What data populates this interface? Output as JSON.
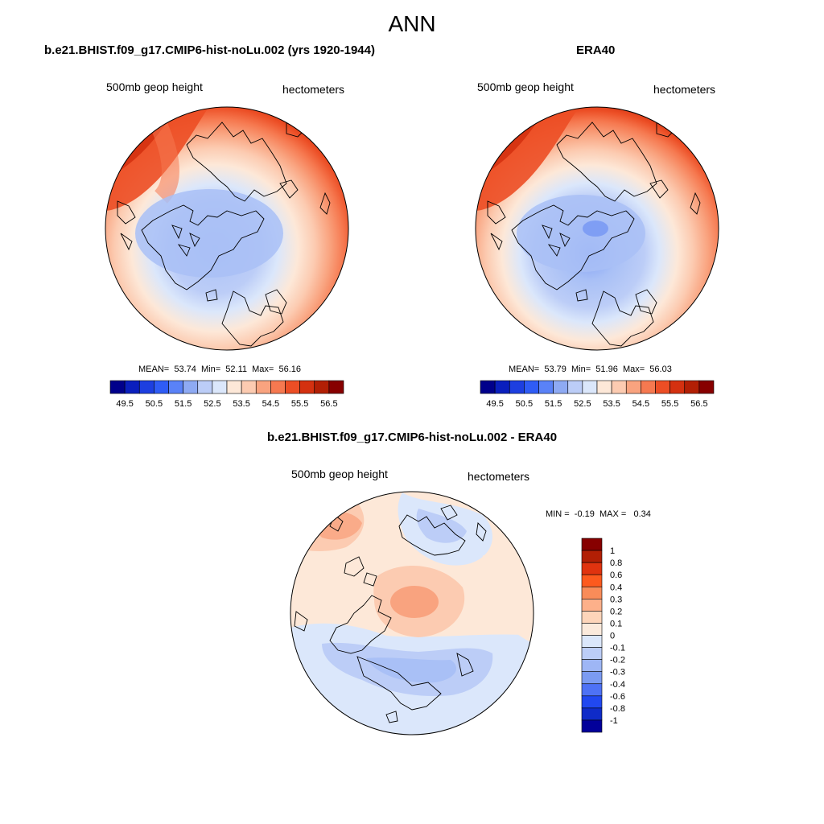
{
  "title": "ANN",
  "colors": {
    "ocean": "#ffffff",
    "coast": "#000000",
    "border": "#000000"
  },
  "panels": [
    {
      "title": "b.e21.BHIST.f09_g17.CMIP6-hist-noLu.002 (yrs 1920-1944)",
      "variable": "500mb geop height",
      "units": "hectometers",
      "stats": {
        "mean_label": "MEAN=",
        "mean": "53.74",
        "min_label": "Min=",
        "min": "52.11",
        "max_label": "Max=",
        "max": "56.16"
      }
    },
    {
      "title": "ERA40",
      "variable": "500mb geop height",
      "units": "hectometers",
      "stats": {
        "mean_label": "MEAN=",
        "mean": "53.79",
        "min_label": "Min=",
        "min": "51.96",
        "max_label": "Max=",
        "max": "56.03"
      }
    },
    {
      "title": "b.e21.BHIST.f09_g17.CMIP6-hist-noLu.002 - ERA40",
      "variable": "500mb geop height",
      "units": "hectometers",
      "stats": {
        "min_label": "MIN =",
        "min": "-0.19",
        "max_label": "MAX =",
        "max": "0.34"
      }
    }
  ],
  "colorbar_abs": {
    "colors": [
      "#00008b",
      "#0a1fbd",
      "#1d3fe0",
      "#2f5cf5",
      "#5a82f7",
      "#8eaaf3",
      "#bccdf7",
      "#dbe7fb",
      "#fde8d8",
      "#fccbb1",
      "#f9a37f",
      "#f67950",
      "#ec4e25",
      "#d43110",
      "#b21f05",
      "#870000"
    ],
    "ticks": [
      "49.5",
      "50.5",
      "51.5",
      "52.5",
      "53.5",
      "54.5",
      "55.5",
      "56.5"
    ]
  },
  "colorbar_diff": {
    "colors": [
      "#870000",
      "#b21f05",
      "#e0330f",
      "#fd5a1e",
      "#f98c59",
      "#fdb08a",
      "#fdd5ba",
      "#fbeadc",
      "#dbe7fb",
      "#bccdf7",
      "#9eb6f5",
      "#7b9bf2",
      "#4e72f5",
      "#2148f0",
      "#0f2bc8",
      "#02009a"
    ],
    "labels": [
      "1",
      "0.8",
      "0.6",
      "0.4",
      "0.3",
      "0.2",
      "0.1",
      "0",
      "-0.1",
      "-0.2",
      "-0.3",
      "-0.4",
      "-0.6",
      "-0.8",
      "-1"
    ]
  },
  "chart_data": [
    {
      "type": "map",
      "projection": "north-polar stereographic",
      "field": "500mb geop height",
      "units": "hectometers",
      "mean": 53.74,
      "min": 52.11,
      "max": 56.16,
      "contour_levels": [
        49.5,
        50,
        50.5,
        51,
        51.5,
        52,
        52.5,
        53,
        53.5,
        54,
        54.5,
        55,
        55.5,
        56,
        56.5
      ],
      "pattern": [
        {
          "region": "Arctic / Canadian archipelago",
          "value_range": [
            52.5,
            53.0
          ]
        },
        {
          "region": "Pacific and Atlantic subtropics (rim)",
          "value_range": [
            55.5,
            56.16
          ]
        }
      ]
    },
    {
      "type": "map",
      "projection": "north-polar stereographic",
      "field": "500mb geop height",
      "units": "hectometers",
      "mean": 53.79,
      "min": 51.96,
      "max": 56.03,
      "contour_levels": [
        49.5,
        50,
        50.5,
        51,
        51.5,
        52,
        52.5,
        53,
        53.5,
        54,
        54.5,
        55,
        55.5,
        56,
        56.5
      ],
      "pattern": [
        {
          "region": "low center over Canadian Arctic",
          "value_range": [
            51.96,
            52.5
          ]
        },
        {
          "region": "Pacific and Atlantic subtropics (rim)",
          "value_range": [
            55.5,
            56.03
          ]
        }
      ]
    },
    {
      "type": "map",
      "projection": "north-polar stereographic",
      "field": "difference 500mb geop height",
      "units": "hectometers",
      "min": -0.19,
      "max": 0.34,
      "contour_levels": [
        -1,
        -0.8,
        -0.6,
        -0.4,
        -0.3,
        -0.2,
        -0.1,
        0,
        0.1,
        0.2,
        0.3,
        0.4,
        0.6,
        0.8,
        1
      ],
      "pattern": [
        {
          "region": "central Arctic",
          "value_range": [
            0.2,
            0.34
          ]
        },
        {
          "region": "Eurasia / Siberia",
          "value_range": [
            -0.19,
            -0.1
          ]
        },
        {
          "region": "North Pacific",
          "value_range": [
            0.1,
            0.2
          ]
        }
      ]
    }
  ]
}
